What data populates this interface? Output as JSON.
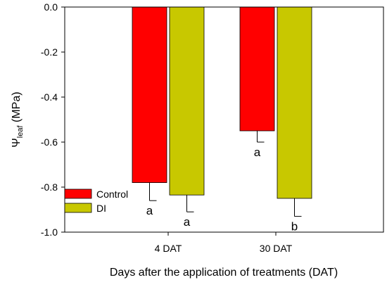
{
  "chart_data": {
    "type": "bar",
    "title": "",
    "categories": [
      "4 DAT",
      "30 DAT"
    ],
    "series": [
      {
        "name": "Control",
        "color": "#ff0000",
        "values": [
          -0.78,
          -0.55
        ],
        "errors": [
          0.08,
          0.05
        ],
        "letters": [
          "a",
          "a"
        ]
      },
      {
        "name": "DI",
        "color": "#c8c800",
        "values": [
          -0.835,
          -0.85
        ],
        "errors": [
          0.075,
          0.08
        ],
        "letters": [
          "a",
          "b"
        ]
      }
    ],
    "ylabel_main": "Ψ",
    "ylabel_sub": "leaf",
    "ylabel_unit": " (MPa)",
    "xlabel": "Days after the application of treatments (DAT)",
    "ylim": [
      -1.0,
      0.0
    ],
    "yticks": [
      "0.0",
      "-0.2",
      "-0.4",
      "-0.6",
      "-0.8",
      "-1.0"
    ],
    "ytick_values": [
      0.0,
      -0.2,
      -0.4,
      -0.6,
      -0.8,
      -1.0
    ],
    "grid": false,
    "legend_position": "bottom-left"
  }
}
